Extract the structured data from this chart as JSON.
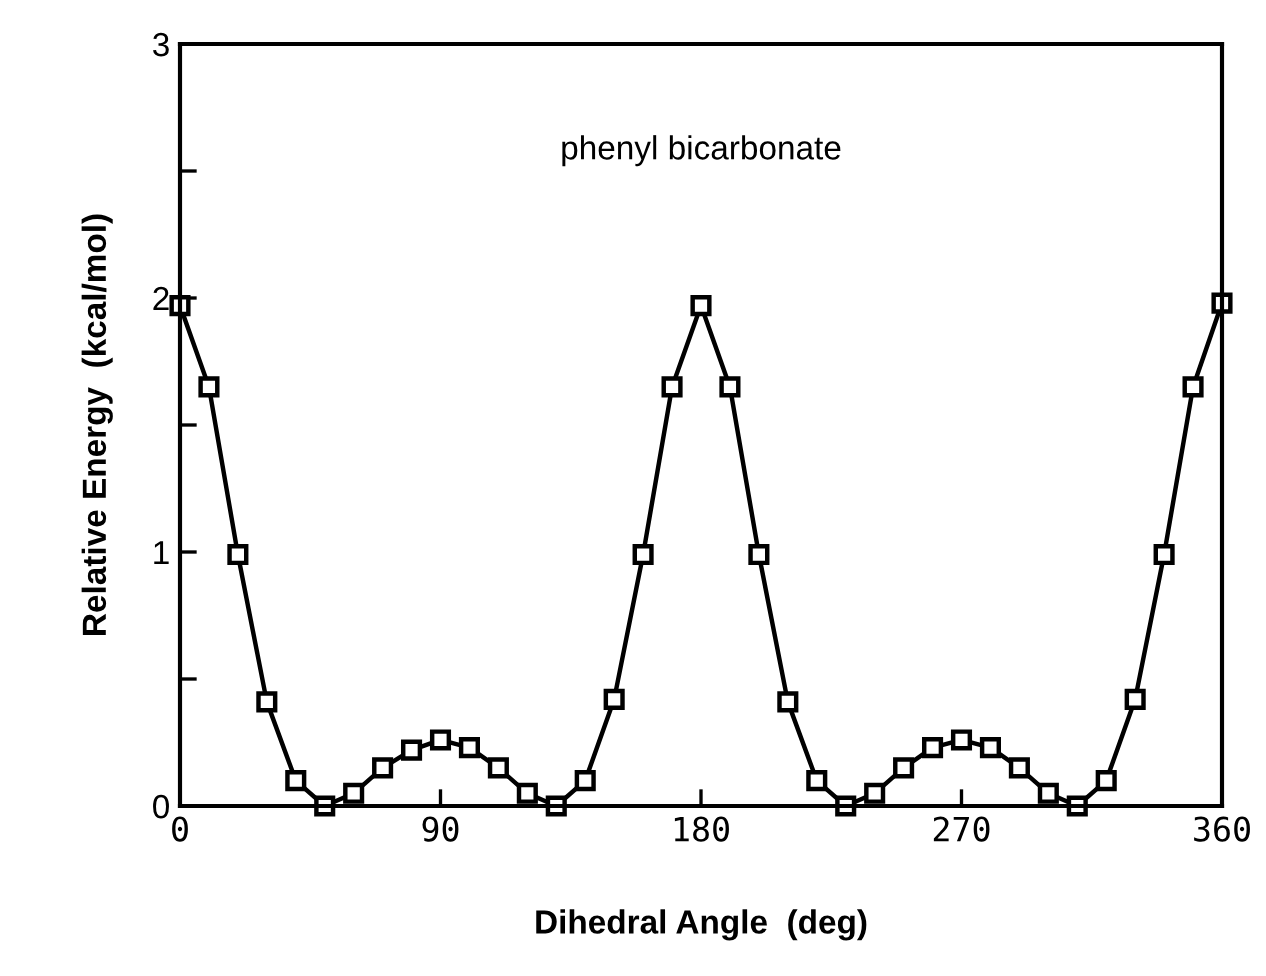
{
  "chart_data": {
    "type": "line",
    "xlabel": "Dihedral Angle  (deg)",
    "ylabel": "Relative Energy  (kcal/mol)",
    "annotations": [
      "phenyl bicarbonate"
    ],
    "x": [
      0,
      10,
      20,
      30,
      40,
      50,
      60,
      70,
      80,
      90,
      100,
      110,
      120,
      130,
      140,
      150,
      160,
      170,
      180,
      190,
      200,
      210,
      220,
      230,
      240,
      250,
      260,
      270,
      280,
      290,
      300,
      310,
      320,
      330,
      340,
      350,
      360
    ],
    "series": [
      {
        "color": "#000000",
        "values": [
          1.97,
          1.65,
          0.99,
          0.41,
          0.1,
          0.0,
          0.05,
          0.15,
          0.22,
          0.26,
          0.23,
          0.15,
          0.05,
          0.0,
          0.1,
          0.42,
          0.99,
          1.65,
          1.97,
          1.65,
          0.99,
          0.41,
          0.1,
          0.0,
          0.05,
          0.15,
          0.23,
          0.26,
          0.23,
          0.15,
          0.05,
          0.0,
          0.1,
          0.42,
          0.99,
          1.65,
          1.98
        ]
      }
    ],
    "xlim": [
      0,
      360
    ],
    "ylim": [
      0,
      3
    ],
    "xticks": [
      0,
      90,
      180,
      270,
      360
    ],
    "yticks": [
      0,
      {
        "value": 0.5,
        "label": null
      },
      1,
      {
        "value": 1.5,
        "label": null
      },
      2,
      {
        "value": 2.5,
        "label": null
      },
      3
    ],
    "marker": "square",
    "line_style": "solid",
    "grid": false
  }
}
